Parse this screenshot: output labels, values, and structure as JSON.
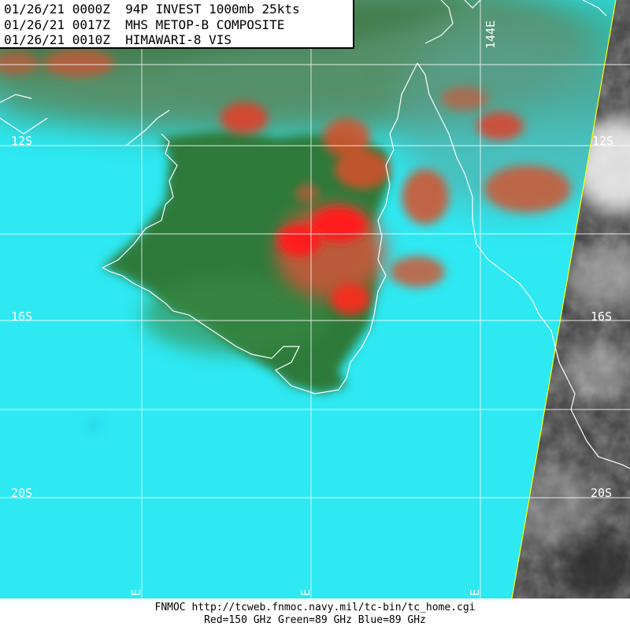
{
  "header": {
    "line1": "01/26/21 0000Z  94P INVEST 1000mb 25kts",
    "line2": "01/26/21 0017Z  MHS METOP-B COMPOSITE",
    "line3": "01/26/21 0010Z  HIMAWARI-8 VIS"
  },
  "footer": {
    "line1": "FNMOC  http://tcweb.fnmoc.navy.mil/tc-bin/tc_home.cgi",
    "line2": "Red=150 GHz  Green=89 GHz Blue=89 GHz"
  },
  "latitude_labels": [
    "12S",
    "16S",
    "20S"
  ],
  "longitude_labels": [
    "144E"
  ],
  "partial_longitude_labels": [
    "E",
    "E",
    "E"
  ],
  "colors": {
    "ocean": "#2ee8f2",
    "land": "#2e7a3a",
    "convection_strong": "#ff1a1a",
    "convection_moderate": "#d9502a",
    "grid": "#ffffff",
    "swath_edge": "#ffff00",
    "vis_background": "#3a3a3a"
  }
}
